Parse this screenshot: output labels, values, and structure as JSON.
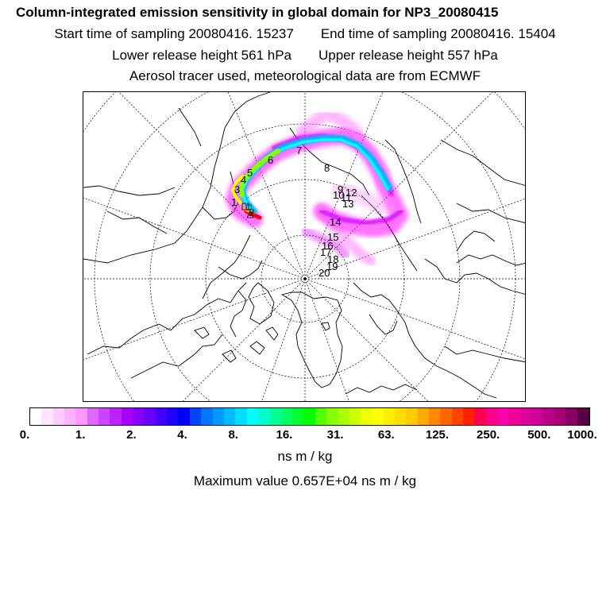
{
  "header": {
    "title": "Column-integrated emission sensitivity in global domain for NP3_20080415",
    "start_time": "Start time of sampling 20080416. 15237",
    "end_time": "End time of sampling 20080416. 15404",
    "lower_height": "Lower release height  561 hPa",
    "upper_height": "Upper release height  557 hPa",
    "tracer_info": "Aerosol tracer used, meteorological data are from ECMWF"
  },
  "map": {
    "projection": "polar stereographic (north pole)",
    "trajectory_labels": [
      "1",
      "2",
      "3",
      "4",
      "5",
      "6",
      "7",
      "8",
      "9",
      "10",
      "11",
      "12",
      "13",
      "14",
      "15",
      "16",
      "17",
      "18",
      "19",
      "20"
    ],
    "plume_colors": [
      "#ff00ff",
      "#cc00ff",
      "#00ffff",
      "#00b4ff",
      "#ffff00",
      "#ff0000"
    ]
  },
  "colorbar": {
    "colors": [
      "#ffffff",
      "#ffe6ff",
      "#ffccff",
      "#ffb3ff",
      "#ff99ff",
      "#dd66ff",
      "#cc44ff",
      "#bb22ff",
      "#aa00ff",
      "#8800ff",
      "#6600ff",
      "#4400ff",
      "#2200ff",
      "#0000ff",
      "#0044ff",
      "#0077ff",
      "#0099ff",
      "#00bbff",
      "#00ddff",
      "#00ffff",
      "#00ffcc",
      "#00ff99",
      "#00ff66",
      "#00ff33",
      "#00ff00",
      "#55ff00",
      "#88ff00",
      "#aaff00",
      "#ccff00",
      "#eeff00",
      "#ffff00",
      "#ffee00",
      "#ffdd00",
      "#ffcc00",
      "#ffaa00",
      "#ff8800",
      "#ff6600",
      "#ff4400",
      "#ff2200",
      "#ff0055",
      "#ff0088",
      "#ff00aa",
      "#ee0099",
      "#dd0099",
      "#cc0099",
      "#bb0088",
      "#aa0077",
      "#880066",
      "#550044"
    ],
    "tick_labels": [
      "0.",
      "1.",
      "2.",
      "4.",
      "8.",
      "16.",
      "31.",
      "63.",
      "125.",
      "250.",
      "500.",
      "1000."
    ],
    "unit": "ns m / kg",
    "max_value": "Maximum value  0.657E+04 ns m / kg"
  }
}
